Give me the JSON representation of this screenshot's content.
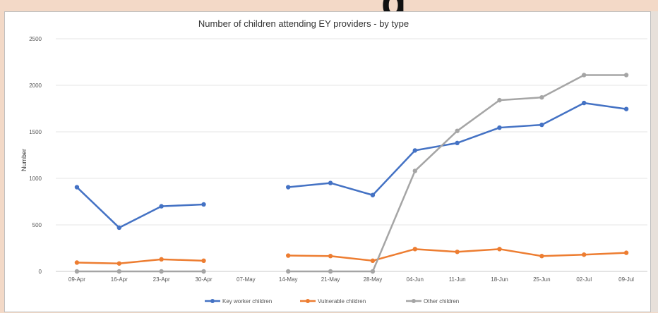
{
  "chart_data": {
    "type": "line",
    "title": "Number of children attending EY providers - by type",
    "xlabel": "",
    "ylabel": "Number",
    "ylim": [
      0,
      2500
    ],
    "yticks": [
      0,
      500,
      1000,
      1500,
      2000,
      2500
    ],
    "categories": [
      "09-Apr",
      "16-Apr",
      "23-Apr",
      "30-Apr",
      "07-May",
      "14-May",
      "21-May",
      "28-May",
      "04-Jun",
      "11-Jun",
      "18-Jun",
      "25-Jun",
      "02-Jul",
      "09-Jul"
    ],
    "series": [
      {
        "name": "Key worker children",
        "color": "#4472c4",
        "values": [
          905,
          470,
          700,
          720,
          null,
          905,
          950,
          820,
          1300,
          1380,
          1545,
          1575,
          1810,
          1745
        ]
      },
      {
        "name": "Vulnerable children",
        "color": "#ed7d31",
        "values": [
          95,
          85,
          130,
          115,
          null,
          170,
          165,
          115,
          240,
          210,
          240,
          165,
          180,
          200
        ]
      },
      {
        "name": "Other children",
        "color": "#a5a5a5",
        "values": [
          0,
          0,
          0,
          0,
          null,
          0,
          0,
          0,
          1080,
          1510,
          1840,
          1870,
          2110,
          2110
        ]
      }
    ],
    "grid": true,
    "legend_position": "bottom"
  }
}
